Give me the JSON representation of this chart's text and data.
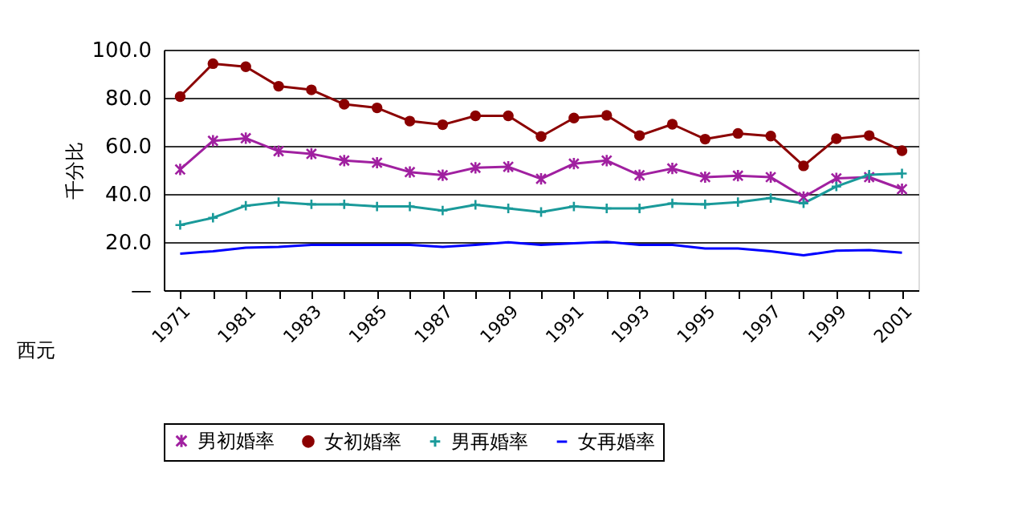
{
  "chart_data": {
    "type": "line",
    "ylabel": "千分比",
    "xlabel": "西元",
    "categories": [
      "1971",
      null,
      "1981",
      null,
      "1983",
      null,
      "1985",
      null,
      "1987",
      null,
      "1989",
      null,
      "1991",
      null,
      "1993",
      null,
      "1995",
      null,
      "1997",
      null,
      "1999",
      null,
      "2001"
    ],
    "ylim": [
      0,
      100
    ],
    "yticks": [
      {
        "value": 0,
        "label": "—"
      },
      {
        "value": 20,
        "label": "20.0"
      },
      {
        "value": 40,
        "label": "40.0"
      },
      {
        "value": 60,
        "label": "60.0"
      },
      {
        "value": 80,
        "label": "80.0"
      },
      {
        "value": 100,
        "label": "100.0"
      }
    ],
    "grid": "y",
    "legend": "bottom",
    "line_style": "solid",
    "series": [
      {
        "name": "男初婚率",
        "color": "#a020a0",
        "marker": "cross",
        "values": [
          50.2,
          62.1,
          63.2,
          57.8,
          56.7,
          53.9,
          53.0,
          49.1,
          47.8,
          50.9,
          51.3,
          46.3,
          52.6,
          53.9,
          47.8,
          50.6,
          47.0,
          47.6,
          47.0,
          38.7,
          46.5,
          47.0,
          42.0
        ]
      },
      {
        "name": "女初婚率",
        "color": "#8b0000",
        "marker": "circle",
        "values": [
          80.5,
          94.2,
          92.9,
          84.8,
          83.3,
          77.3,
          75.8,
          70.3,
          68.8,
          72.5,
          72.5,
          63.9,
          71.6,
          72.7,
          64.3,
          69.0,
          62.8,
          65.2,
          64.1,
          51.7,
          63.0,
          64.3,
          58.0
        ]
      },
      {
        "name": "男再婚率",
        "color": "#1a9a9a",
        "marker": "cross",
        "values": [
          27.1,
          30.1,
          35.1,
          36.6,
          35.7,
          35.7,
          34.8,
          34.8,
          33.1,
          35.5,
          34.0,
          32.5,
          34.8,
          34.0,
          34.0,
          36.1,
          35.7,
          36.6,
          38.3,
          36.1,
          43.1,
          48.0,
          48.5
        ]
      },
      {
        "name": "女再婚率",
        "color": "#0000ff",
        "marker": "none",
        "values": [
          15.2,
          16.2,
          17.7,
          18.0,
          18.8,
          18.8,
          18.8,
          18.8,
          18.0,
          18.8,
          19.9,
          18.8,
          19.5,
          20.1,
          18.8,
          18.8,
          17.3,
          17.3,
          16.2,
          14.5,
          16.4,
          16.7,
          15.6
        ]
      }
    ]
  }
}
